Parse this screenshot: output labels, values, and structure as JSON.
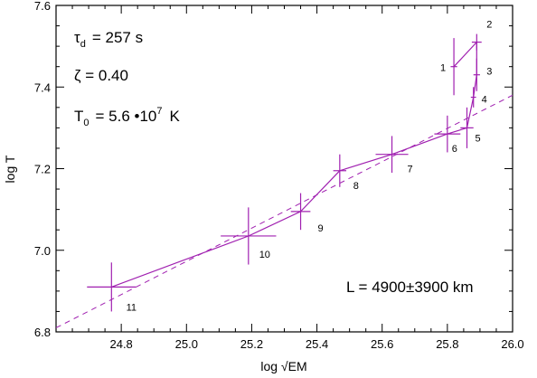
{
  "chart_data": {
    "type": "line",
    "xlabel": "log √EM",
    "ylabel": "log T",
    "xlim": [
      24.6,
      26.0
    ],
    "ylim": [
      6.8,
      7.6
    ],
    "x_ticks": [
      24.8,
      25.0,
      25.2,
      25.4,
      25.6,
      25.8,
      26.0
    ],
    "x_tick_labels": [
      "24.8",
      "25.0",
      "25.2",
      "25.4",
      "25.6",
      "25.8",
      "26.0"
    ],
    "y_ticks": [
      6.8,
      7.0,
      7.2,
      7.4,
      7.6
    ],
    "y_tick_labels": [
      "6.8",
      "7.0",
      "7.2",
      "7.4",
      "7.6"
    ],
    "series_color": "#a020b0",
    "points": [
      {
        "label": "1",
        "x": 25.82,
        "y": 7.45,
        "xerr": 0.01,
        "yerr": 0.07
      },
      {
        "label": "2",
        "x": 25.89,
        "y": 7.51,
        "xerr": 0.015,
        "yerr": 0.02
      },
      {
        "label": "3",
        "x": 25.89,
        "y": 7.43,
        "xerr": 0.01,
        "yerr": 0.04
      },
      {
        "label": "4",
        "x": 25.88,
        "y": 7.375,
        "xerr": 0.008,
        "yerr": 0.025
      },
      {
        "label": "5",
        "x": 25.86,
        "y": 7.3,
        "xerr": 0.02,
        "yerr": 0.05
      },
      {
        "label": "6",
        "x": 25.8,
        "y": 7.285,
        "xerr": 0.04,
        "yerr": 0.045
      },
      {
        "label": "7",
        "x": 25.63,
        "y": 7.235,
        "xerr": 0.05,
        "yerr": 0.045
      },
      {
        "label": "8",
        "x": 25.47,
        "y": 7.195,
        "xerr": 0.02,
        "yerr": 0.04
      },
      {
        "label": "9",
        "x": 25.35,
        "y": 7.095,
        "xerr": 0.03,
        "yerr": 0.045
      },
      {
        "label": "10",
        "x": 25.19,
        "y": 7.035,
        "xerr": 0.085,
        "yerr": 0.07
      },
      {
        "label": "11",
        "x": 24.77,
        "y": 6.91,
        "xerr": 0.075,
        "yerr": 0.06
      }
    ],
    "fit_line": {
      "style": "dashed",
      "x": [
        24.6,
        26.0
      ],
      "y": [
        6.81,
        7.38
      ]
    },
    "annotations": {
      "tau_symbol": "τ",
      "tau_sub": "d",
      "tau_value": "= 257 s",
      "zeta": "ζ = 0.40",
      "t0_symbol": "T",
      "t0_sub": "0",
      "t0_value": "= 5.6 •10",
      "t0_exp": "7",
      "t0_unit": "K",
      "length": "L = 4900±3900 km"
    }
  }
}
